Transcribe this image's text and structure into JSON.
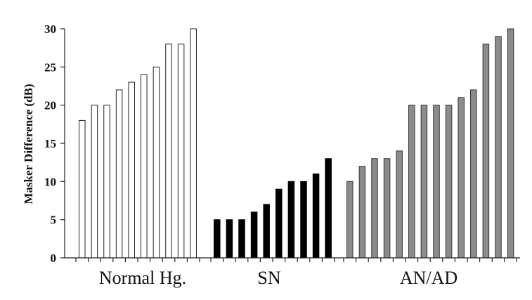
{
  "chart_data": {
    "type": "bar",
    "ylabel": "Masker Difference (dB)",
    "ylim": [
      0,
      30
    ],
    "yticks": [
      0,
      5,
      10,
      15,
      20,
      25,
      30
    ],
    "grid": false,
    "groups": [
      {
        "label": "Normal Hg.",
        "fill": "#ffffff",
        "stroke": "#222222",
        "values": [
          18,
          20,
          20,
          22,
          23,
          24,
          25,
          28,
          28,
          30
        ]
      },
      {
        "label": "SN",
        "fill": "#000000",
        "stroke": "#000000",
        "values": [
          5,
          5,
          5,
          6,
          7,
          9,
          10,
          10,
          11,
          13
        ]
      },
      {
        "label": "AN/AD",
        "fill": "#8c8c8c",
        "stroke": "#333333",
        "values": [
          10,
          12,
          13,
          13,
          14,
          20,
          20,
          20,
          20,
          21,
          22,
          28,
          29,
          30
        ]
      }
    ]
  }
}
